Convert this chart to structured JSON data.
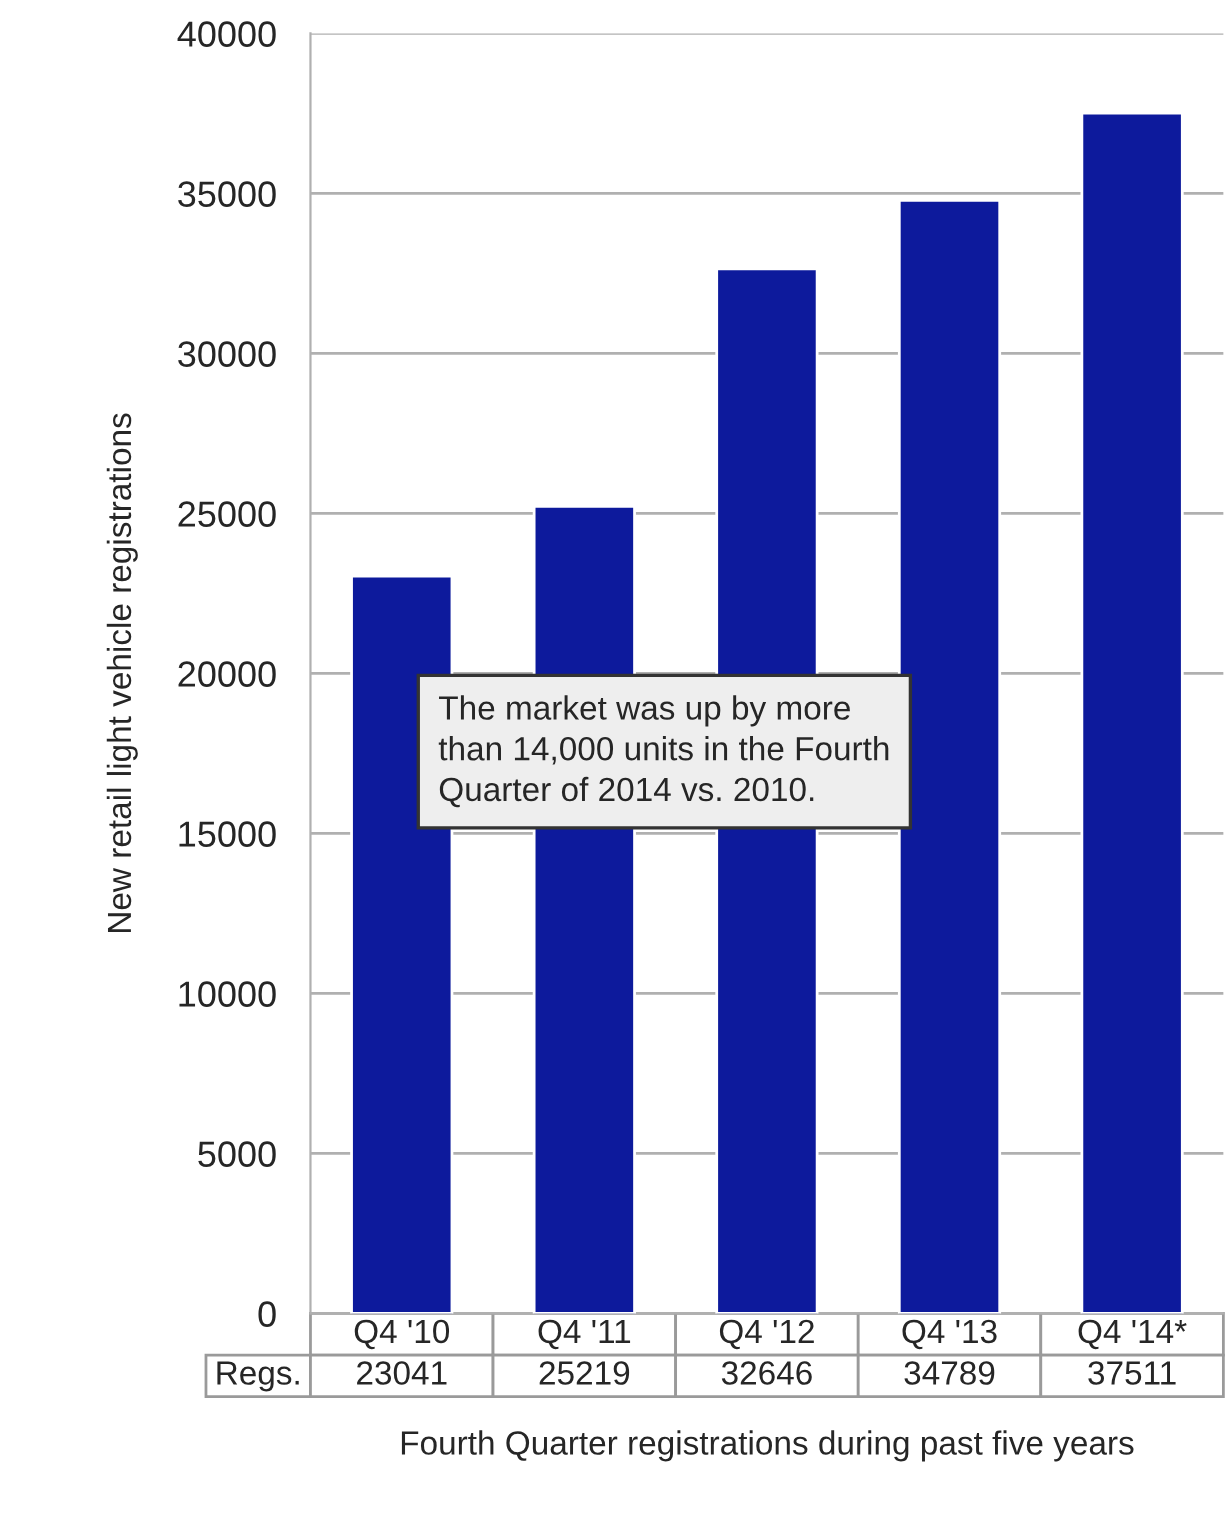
{
  "chart_data": {
    "type": "bar",
    "categories": [
      "Q4 '10",
      "Q4 '11",
      "Q4 '12",
      "Q4 '13",
      "Q4 '14*"
    ],
    "series": [
      {
        "name": "Regs.",
        "color": "#0d1a9c",
        "values": [
          23041,
          25219,
          32646,
          34789,
          37511
        ]
      }
    ],
    "ylabel": "New retail light vehicle registrations",
    "xlabel": "Fourth Quarter registrations during past five years",
    "annotations": [
      "The market was up by more\nthan 14,000 units in the Fourth\nQuarter of 2014 vs. 2010."
    ],
    "ylim": [
      0,
      40000
    ],
    "yticks": [
      0,
      5000,
      10000,
      15000,
      20000,
      25000,
      30000,
      35000,
      40000
    ],
    "grid": "y",
    "data_labels": true
  }
}
